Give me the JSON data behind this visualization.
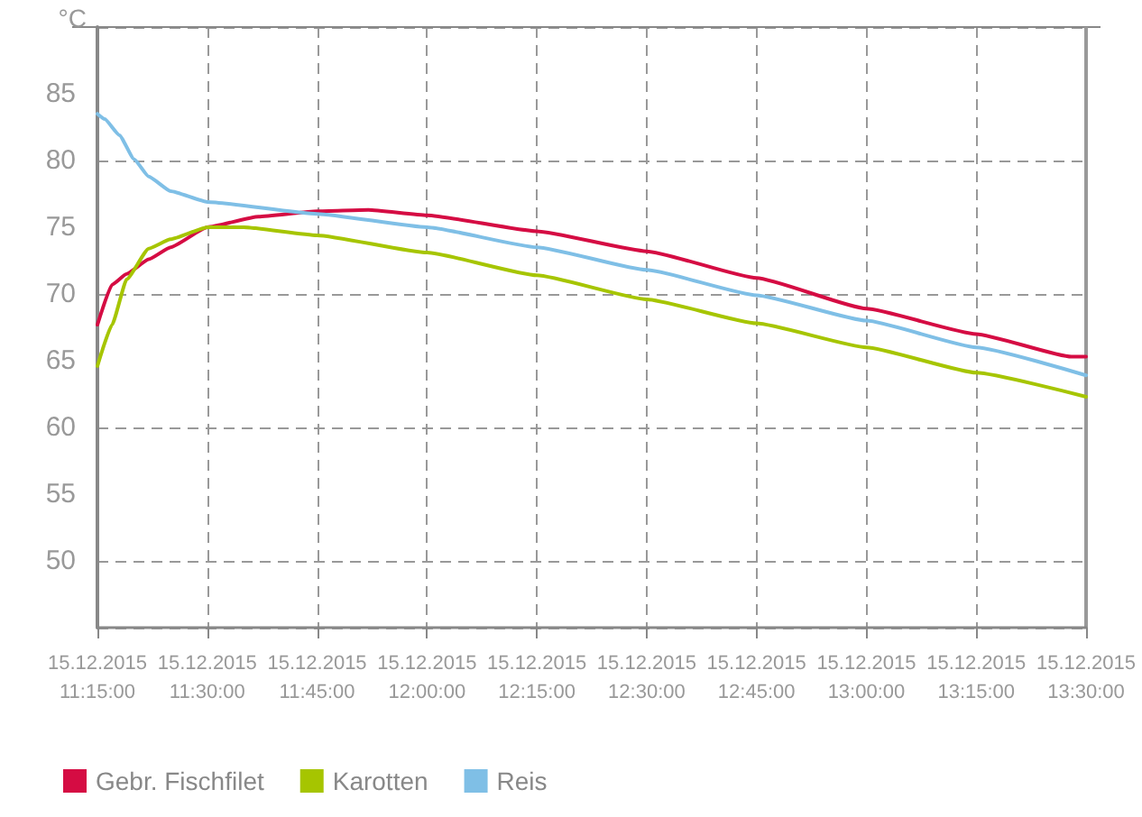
{
  "chart_data": {
    "type": "line",
    "ylabel": "°C",
    "xlim": [
      "2015-12-15T11:15",
      "2015-12-15T13:30"
    ],
    "xticks": [
      {
        "value": "2015-12-15T11:15",
        "label": "15.12.2015\n11:15:00"
      },
      {
        "value": "2015-12-15T11:30",
        "label": "15.12.2015\n11:30:00"
      },
      {
        "value": "2015-12-15T11:45",
        "label": "15.12.2015\n11:45:00"
      },
      {
        "value": "2015-12-15T12:00",
        "label": "15.12.2015\n12:00:00"
      },
      {
        "value": "2015-12-15T12:15",
        "label": "15.12.2015\n12:15:00"
      },
      {
        "value": "2015-12-15T12:30",
        "label": "15.12.2015\n12:30:00"
      },
      {
        "value": "2015-12-15T12:45",
        "label": "15.12.2015\n12:45:00"
      },
      {
        "value": "2015-12-15T13:00",
        "label": "15.12.2015\n13:00:00"
      },
      {
        "value": "2015-12-15T13:15",
        "label": "15.12.2015\n13:15:00"
      },
      {
        "value": "2015-12-15T13:30",
        "label": "15.12.2015\n13:30:00"
      }
    ],
    "ylim": [
      45,
      90
    ],
    "yticks": [
      {
        "value": 45,
        "label": null
      },
      50,
      55,
      60,
      65,
      70,
      75,
      80,
      85,
      {
        "value": 90,
        "label": null
      }
    ],
    "grid": true,
    "legend": "bottom left",
    "marker": "none",
    "line_style": "solid",
    "series": [
      {
        "name": "Gebr. Fischfilet",
        "color": "#d50c43",
        "x": [
          "2015-12-15T11:15",
          "2015-12-15T11:17",
          "2015-12-15T11:19",
          "2015-12-15T11:22",
          "2015-12-15T11:25",
          "2015-12-15T11:30",
          "2015-12-15T11:37",
          "2015-12-15T11:45",
          "2015-12-15T11:52",
          "2015-12-15T12:00",
          "2015-12-15T12:15",
          "2015-12-15T12:30",
          "2015-12-15T12:45",
          "2015-12-15T13:00",
          "2015-12-15T13:15",
          "2015-12-15T13:28",
          "2015-12-15T13:30"
        ],
        "values": [
          67.7,
          70.7,
          71.5,
          72.6,
          73.5,
          75.0,
          75.8,
          76.2,
          76.3,
          75.9,
          74.7,
          73.2,
          71.2,
          68.9,
          67.0,
          65.3,
          65.3
        ]
      },
      {
        "name": "Karotten",
        "color": "#a6c500",
        "x": [
          "2015-12-15T11:15",
          "2015-12-15T11:17",
          "2015-12-15T11:19",
          "2015-12-15T11:22",
          "2015-12-15T11:25",
          "2015-12-15T11:30",
          "2015-12-15T11:35",
          "2015-12-15T11:45",
          "2015-12-15T12:00",
          "2015-12-15T12:15",
          "2015-12-15T12:30",
          "2015-12-15T12:45",
          "2015-12-15T13:00",
          "2015-12-15T13:15",
          "2015-12-15T13:30"
        ],
        "values": [
          64.6,
          67.7,
          71.1,
          73.4,
          74.1,
          75.0,
          75.0,
          74.4,
          73.1,
          71.4,
          69.6,
          67.8,
          66.0,
          64.1,
          62.3
        ]
      },
      {
        "name": "Reis",
        "color": "#7fbfe6",
        "x": [
          "2015-12-15T11:15",
          "2015-12-15T11:16",
          "2015-12-15T11:18",
          "2015-12-15T11:20",
          "2015-12-15T11:22",
          "2015-12-15T11:25",
          "2015-12-15T11:30",
          "2015-12-15T11:45",
          "2015-12-15T12:00",
          "2015-12-15T12:15",
          "2015-12-15T12:30",
          "2015-12-15T12:45",
          "2015-12-15T13:00",
          "2015-12-15T13:15",
          "2015-12-15T13:30"
        ],
        "values": [
          83.5,
          83.1,
          81.9,
          80.1,
          78.8,
          77.7,
          76.9,
          76.0,
          75.0,
          73.5,
          71.8,
          69.9,
          68.0,
          66.0,
          63.9
        ]
      }
    ]
  }
}
